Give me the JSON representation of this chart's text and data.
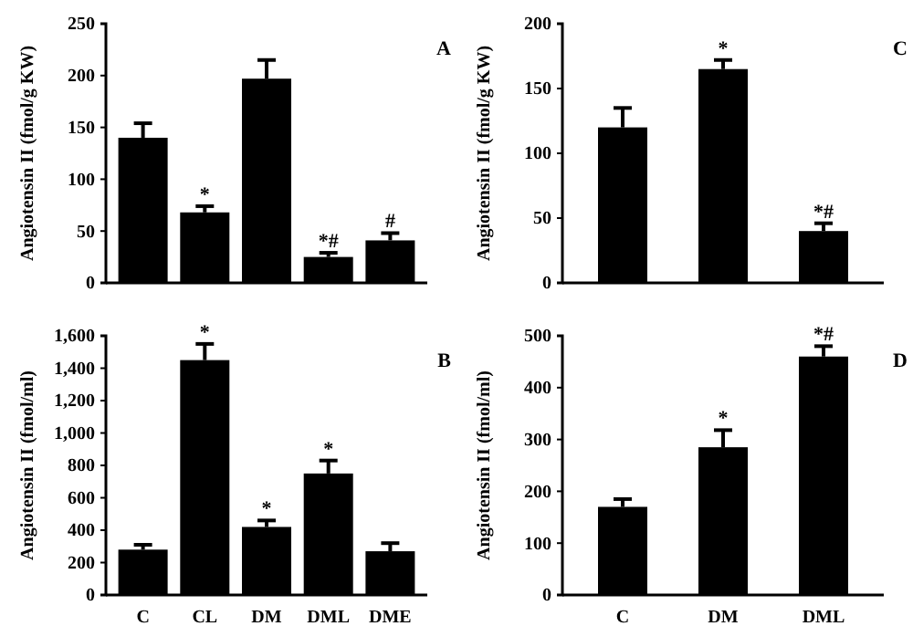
{
  "chart_data": [
    {
      "type": "bar",
      "ylabel": "Angiotensin II (fmol/g KW)",
      "categories": [
        null,
        null,
        null,
        null,
        null
      ],
      "values": [
        140,
        68,
        197,
        25,
        41
      ],
      "errors": [
        [
          140,
          154
        ],
        [
          68,
          74
        ],
        [
          197,
          215
        ],
        [
          25,
          29
        ],
        [
          41,
          48
        ]
      ],
      "value_labels": [
        null,
        "*",
        null,
        "*#",
        "#"
      ],
      "color": "#000000",
      "ylim": [
        0,
        250
      ],
      "yticks": [
        0,
        50,
        100,
        150,
        200,
        250
      ],
      "annotations": [
        "A"
      ],
      "tick_labels": "y"
    },
    {
      "type": "bar",
      "ylabel": "Angiotensin II (fmol/g KW)",
      "categories": [
        null,
        null,
        null
      ],
      "values": [
        120,
        165,
        40
      ],
      "errors": [
        [
          120,
          135
        ],
        [
          165,
          172
        ],
        [
          40,
          46
        ]
      ],
      "value_labels": [
        null,
        "*",
        "*#"
      ],
      "color": "#000000",
      "ylim": [
        0,
        200
      ],
      "yticks": [
        0,
        50,
        100,
        150,
        200
      ],
      "annotations": [
        "C"
      ],
      "tick_labels": "y"
    },
    {
      "type": "bar",
      "ylabel": "Angiotensin II (fmol/ml)",
      "categories": [
        "C",
        "CL",
        "DM",
        "DML",
        "DME"
      ],
      "values": [
        280,
        1450,
        420,
        750,
        270
      ],
      "errors": [
        [
          280,
          310
        ],
        [
          1450,
          1550
        ],
        [
          420,
          460
        ],
        [
          750,
          830
        ],
        [
          270,
          320
        ]
      ],
      "value_labels": [
        null,
        "*",
        "*",
        "*",
        null
      ],
      "color": "#000000",
      "ylim": [
        0,
        1600
      ],
      "yticks": [
        0,
        {
          "value": 200,
          "label": "200"
        },
        {
          "value": 400,
          "label": "400"
        },
        {
          "value": 600,
          "label": "600"
        },
        {
          "value": 800,
          "label": "800"
        },
        {
          "value": 1000,
          "label": "1,000"
        },
        {
          "value": 1200,
          "label": "1,200"
        },
        {
          "value": 1400,
          "label": "1,400"
        },
        {
          "value": 1600,
          "label": "1,600"
        }
      ],
      "annotations": [
        "B"
      ]
    },
    {
      "type": "bar",
      "ylabel": "Angiotensin II (fmol/ml)",
      "categories": [
        "C",
        "DM",
        "DML"
      ],
      "values": [
        170,
        285,
        460
      ],
      "errors": [
        [
          170,
          185
        ],
        [
          285,
          318
        ],
        [
          460,
          480
        ]
      ],
      "value_labels": [
        null,
        "*",
        "*#"
      ],
      "color": "#000000",
      "ylim": [
        0,
        500
      ],
      "yticks": [
        0,
        100,
        200,
        300,
        400,
        500
      ],
      "annotations": [
        "D"
      ]
    }
  ]
}
